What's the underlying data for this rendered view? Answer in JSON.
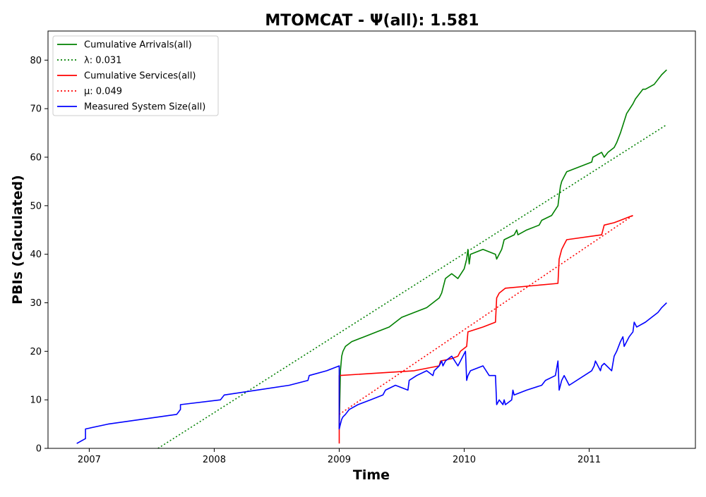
{
  "chart_data": {
    "type": "line",
    "title": "MTOMCAT -  Ψ(all): 1.581",
    "xlabel": "Time",
    "ylabel": "PBIs (Calculated)",
    "xlim": [
      2006.67,
      2011.85
    ],
    "ylim": [
      0,
      86
    ],
    "xticks": [
      2007,
      2008,
      2009,
      2010,
      2011
    ],
    "xtick_labels": [
      "2007",
      "2008",
      "2009",
      "2010",
      "2011"
    ],
    "yticks": [
      0,
      10,
      20,
      30,
      40,
      50,
      60,
      70,
      80
    ],
    "ytick_labels": [
      "0",
      "10",
      "20",
      "30",
      "40",
      "50",
      "60",
      "70",
      "80"
    ],
    "grid": false,
    "legend_position": "top-left",
    "series": [
      {
        "name": "Cumulative Arrivals(all)",
        "color": "#008000",
        "style": "solid",
        "x": [
          2009.0,
          2009.01,
          2009.02,
          2009.03,
          2009.05,
          2009.1,
          2009.2,
          2009.3,
          2009.4,
          2009.45,
          2009.5,
          2009.6,
          2009.7,
          2009.8,
          2009.82,
          2009.85,
          2009.9,
          2009.95,
          2010.0,
          2010.02,
          2010.03,
          2010.04,
          2010.05,
          2010.15,
          2010.25,
          2010.26,
          2010.3,
          2010.31,
          2010.32,
          2010.4,
          2010.42,
          2010.43,
          2010.5,
          2010.6,
          2010.62,
          2010.7,
          2010.75,
          2010.76,
          2010.77,
          2010.78,
          2010.8,
          2010.82,
          2011.02,
          2011.03,
          2011.1,
          2011.12,
          2011.15,
          2011.2,
          2011.22,
          2011.25,
          2011.3,
          2011.35,
          2011.37,
          2011.4,
          2011.43,
          2011.45,
          2011.52,
          2011.55,
          2011.58,
          2011.62
        ],
        "y": [
          4,
          16,
          19,
          20,
          21,
          22,
          23,
          24,
          25,
          26,
          27,
          28,
          29,
          31,
          32,
          35,
          36,
          35,
          37,
          39,
          41,
          38,
          40,
          41,
          40,
          39,
          41,
          42,
          43,
          44,
          45,
          44,
          45,
          46,
          47,
          48,
          50,
          52,
          54,
          55,
          56,
          57,
          59,
          60,
          61,
          60,
          61,
          62,
          63,
          65,
          69,
          71,
          72,
          73,
          74,
          74,
          75,
          76,
          77,
          78
        ]
      },
      {
        "name": "λ: 0.031",
        "color": "#008000",
        "style": "dotted",
        "x": [
          2007.55,
          2011.62
        ],
        "y": [
          0,
          66.7
        ]
      },
      {
        "name": "Cumulative Services(all)",
        "color": "#ff0000",
        "style": "solid",
        "x": [
          2009.0,
          2009.0,
          2009.0,
          2009.6,
          2009.8,
          2009.81,
          2009.9,
          2009.95,
          2009.97,
          2010.02,
          2010.03,
          2010.15,
          2010.25,
          2010.26,
          2010.28,
          2010.33,
          2010.75,
          2010.76,
          2010.78,
          2010.8,
          2010.82,
          2011.1,
          2011.12,
          2011.2,
          2011.25,
          2011.35
        ],
        "y": [
          1,
          15,
          15,
          16,
          17,
          18,
          18.5,
          19,
          20,
          21,
          24,
          25,
          26,
          31,
          32,
          33,
          34,
          39,
          41,
          42,
          43,
          44,
          46,
          46.5,
          47,
          48
        ]
      },
      {
        "name": "μ: 0.049",
        "color": "#ff0000",
        "style": "dotted",
        "x": [
          2009.0,
          2011.35
        ],
        "y": [
          7,
          48
        ]
      },
      {
        "name": "Measured System Size(all)",
        "color": "#0000ff",
        "style": "solid",
        "x": [
          2006.9,
          2006.97,
          2006.97,
          2007.15,
          2007.7,
          2007.73,
          2007.73,
          2008.05,
          2008.08,
          2008.6,
          2008.75,
          2008.76,
          2008.9,
          2009.0,
          2009.0,
          2009.0,
          2009.01,
          2009.02,
          2009.03,
          2009.05,
          2009.08,
          2009.15,
          2009.25,
          2009.35,
          2009.37,
          2009.45,
          2009.55,
          2009.56,
          2009.62,
          2009.7,
          2009.75,
          2009.76,
          2009.8,
          2009.82,
          2009.83,
          2009.85,
          2009.9,
          2009.95,
          2009.97,
          2009.99,
          2010.01,
          2010.02,
          2010.03,
          2010.05,
          2010.15,
          2010.2,
          2010.25,
          2010.26,
          2010.28,
          2010.31,
          2010.32,
          2010.33,
          2010.38,
          2010.39,
          2010.4,
          2010.5,
          2010.62,
          2010.65,
          2010.73,
          2010.75,
          2010.76,
          2010.77,
          2010.78,
          2010.8,
          2010.82,
          2010.84,
          2011.02,
          2011.04,
          2011.05,
          2011.09,
          2011.1,
          2011.12,
          2011.18,
          2011.2,
          2011.22,
          2011.25,
          2011.27,
          2011.28,
          2011.3,
          2011.32,
          2011.35,
          2011.36,
          2011.38,
          2011.45,
          2011.5,
          2011.55,
          2011.58,
          2011.62
        ],
        "y": [
          1,
          2,
          4,
          5,
          7,
          8,
          9,
          10,
          11,
          13,
          14,
          15,
          16,
          17,
          7,
          4,
          5,
          6,
          6.5,
          7,
          8,
          9,
          10,
          11,
          12,
          13,
          12,
          14,
          15,
          16,
          15,
          16,
          17,
          18,
          17,
          18,
          19,
          17,
          18,
          19,
          20,
          14,
          15,
          16,
          17,
          15,
          15,
          9,
          10,
          9,
          10,
          9,
          10,
          12,
          11,
          12,
          13,
          14,
          15,
          18,
          12,
          13,
          14,
          15,
          14,
          13,
          16,
          17,
          18,
          16,
          17,
          17.5,
          16,
          19,
          20,
          22,
          23,
          21,
          22,
          23,
          24,
          26,
          25,
          26,
          27,
          28,
          29,
          30
        ]
      }
    ],
    "legend": [
      {
        "label": "Cumulative Arrivals(all)",
        "color": "#008000",
        "style": "solid"
      },
      {
        "label": "λ: 0.031",
        "color": "#008000",
        "style": "dotted"
      },
      {
        "label": "Cumulative Services(all)",
        "color": "#ff0000",
        "style": "solid"
      },
      {
        "label": "μ: 0.049",
        "color": "#ff0000",
        "style": "dotted"
      },
      {
        "label": "Measured System Size(all)",
        "color": "#0000ff",
        "style": "solid"
      }
    ]
  }
}
